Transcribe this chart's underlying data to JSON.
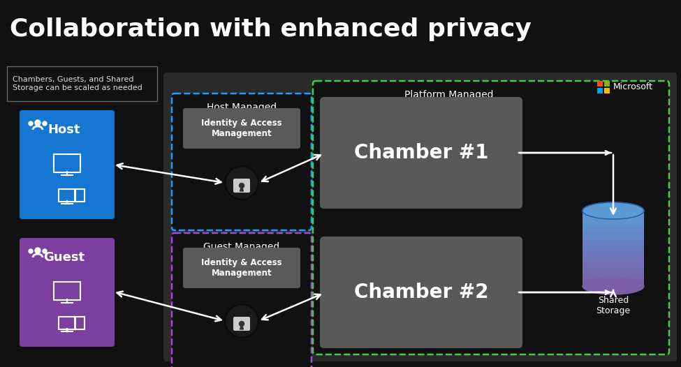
{
  "title": "Collaboration with enhanced privacy",
  "background_color": "#111111",
  "title_color": "#ffffff",
  "title_fontsize": 26,
  "note_text": "Chambers, Guests, and Shared\nStorage can be scaled as needed",
  "host_label": "Host",
  "guest_label": "Guest",
  "host_box_color": "#1677d2",
  "guest_box_color": "#7b3fa0",
  "main_panel_color": "#2a2a2a",
  "chamber_box_color": "#595959",
  "host_managed_label": "Host Managed",
  "guest_managed_label": "Guest Managed",
  "platform_managed_label": "Platform Managed",
  "iam_label": "Identity & Access\nManagement",
  "chamber1_label": "Chamber #1",
  "chamber2_label": "Chamber #2",
  "shared_storage_label": "Shared\nStorage",
  "microsoft_label": "Microsoft",
  "ms_colors": [
    "#f25022",
    "#7fba00",
    "#00a4ef",
    "#ffb900"
  ],
  "arrow_color": "#ffffff",
  "dashed_blue": "#1a9fff",
  "dashed_green": "#44cc44",
  "dashed_purple": "#aa44dd",
  "cylinder_gradient_top": "#5b9bd5",
  "cylinder_gradient_mid": "#4472c4",
  "cylinder_gradient_bot": "#7b5ea7",
  "iam_box_color": "#5a5a5a",
  "lock_circle_color": "#111111"
}
